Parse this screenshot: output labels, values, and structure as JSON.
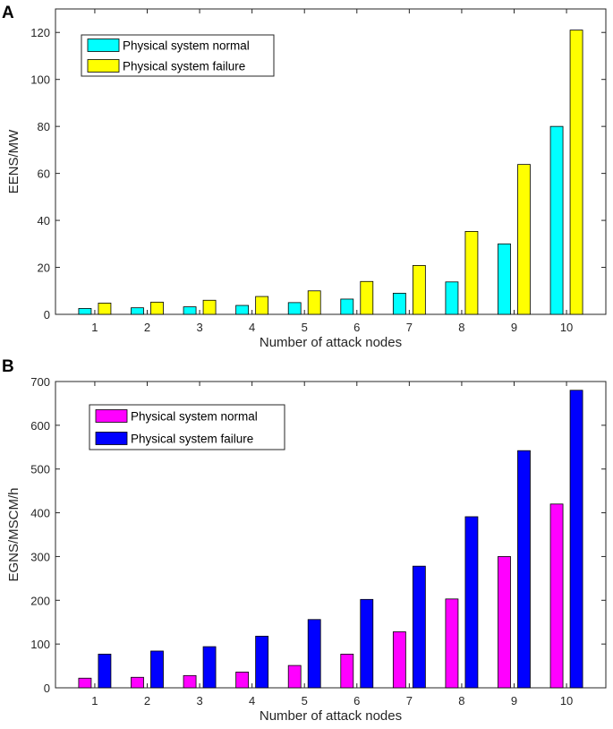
{
  "chart_data": [
    {
      "panel": "A",
      "type": "bar",
      "categories": [
        "1",
        "2",
        "3",
        "4",
        "5",
        "6",
        "7",
        "8",
        "9",
        "10"
      ],
      "series": [
        {
          "name": "Physical system normal",
          "color": "#00ffff",
          "values": [
            2.5,
            2.8,
            3.2,
            3.8,
            5.0,
            6.5,
            9.0,
            13.8,
            30.0,
            80.0
          ]
        },
        {
          "name": "Physical system failure",
          "color": "#ffff00",
          "values": [
            4.8,
            5.2,
            6.0,
            7.6,
            10.0,
            14.0,
            20.8,
            35.3,
            63.8,
            121.0
          ]
        }
      ],
      "title": "",
      "xlabel": "Number of attack nodes",
      "ylabel": "EENS/MW",
      "ylim": [
        0,
        130
      ],
      "yticks": [
        0,
        20,
        40,
        60,
        80,
        100,
        120
      ],
      "legend": "top-left",
      "grid": false
    },
    {
      "panel": "B",
      "type": "bar",
      "categories": [
        "1",
        "2",
        "3",
        "4",
        "5",
        "6",
        "7",
        "8",
        "9",
        "10"
      ],
      "series": [
        {
          "name": "Physical system normal",
          "color": "#ff00ff",
          "values": [
            22,
            24,
            28,
            36,
            51,
            77,
            128,
            203,
            300,
            420
          ]
        },
        {
          "name": "Physical system failure",
          "color": "#0000ff",
          "values": [
            77,
            84,
            94,
            118,
            156,
            202,
            278,
            391,
            542,
            680
          ]
        }
      ],
      "title": "",
      "xlabel": "Number of attack nodes",
      "ylabel": "EGNS/MSCM/h",
      "ylim": [
        0,
        700
      ],
      "yticks": [
        0,
        100,
        200,
        300,
        400,
        500,
        600,
        700
      ],
      "legend": "top-left",
      "grid": false
    }
  ]
}
